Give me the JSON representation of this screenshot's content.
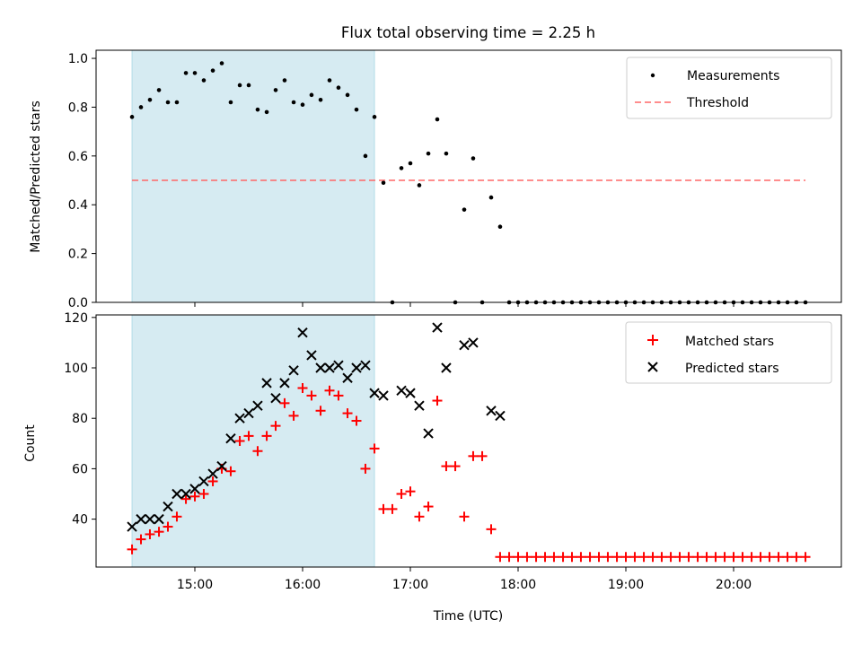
{
  "chart_data": [
    {
      "type": "scatter",
      "title": "Flux total observing time = 2.25 h",
      "ylabel": "Matched/Predicted stars",
      "xlabel": "",
      "xlim": [
        14.0833,
        21.0
      ],
      "ylim": [
        0.0,
        1.0333
      ],
      "yticks": [
        "0.0",
        "0.2",
        "0.4",
        "0.6",
        "0.8",
        "1.0"
      ],
      "ytick_values": [
        0.0,
        0.2,
        0.4,
        0.6,
        0.8,
        1.0
      ],
      "xtick_values": [
        15,
        16,
        17,
        18,
        19,
        20
      ],
      "grid": false,
      "legend_position": "upper right",
      "observing_window": [
        14.417,
        16.667
      ],
      "threshold_label": "Threshold",
      "threshold": 0.5,
      "threshold_x": [
        14.417,
        20.667
      ],
      "series": [
        {
          "name": "Measurements",
          "color": "#000000",
          "marker": "dot",
          "x": [
            14.417,
            14.5,
            14.583,
            14.667,
            14.75,
            14.833,
            14.917,
            15.0,
            15.083,
            15.167,
            15.25,
            15.333,
            15.417,
            15.5,
            15.583,
            15.667,
            15.75,
            15.833,
            15.917,
            16.0,
            16.083,
            16.167,
            16.25,
            16.333,
            16.417,
            16.5,
            16.583,
            16.667,
            16.75,
            16.833,
            16.917,
            17.0,
            17.083,
            17.167,
            17.25,
            17.333,
            17.417,
            17.5,
            17.583,
            17.667,
            17.75,
            17.833,
            17.917,
            18.0,
            18.083,
            18.167,
            18.25,
            18.333,
            18.417,
            18.5,
            18.583,
            18.667,
            18.75,
            18.833,
            18.917,
            19.0,
            19.083,
            19.167,
            19.25,
            19.333,
            19.417,
            19.5,
            19.583,
            19.667,
            19.75,
            19.833,
            19.917,
            20.0,
            20.083,
            20.167,
            20.25,
            20.333,
            20.417,
            20.5,
            20.583,
            20.667
          ],
          "y": [
            0.76,
            0.8,
            0.83,
            0.87,
            0.82,
            0.82,
            0.94,
            0.94,
            0.91,
            0.95,
            0.98,
            0.82,
            0.89,
            0.89,
            0.79,
            0.78,
            0.87,
            0.91,
            0.82,
            0.81,
            0.85,
            0.83,
            0.91,
            0.88,
            0.85,
            0.79,
            0.6,
            0.76,
            0.49,
            0.0,
            0.55,
            0.57,
            0.48,
            0.61,
            0.75,
            0.61,
            0.0,
            0.38,
            0.59,
            0.0,
            0.43,
            0.31,
            0.0,
            0.0,
            0.0,
            0.0,
            0.0,
            0.0,
            0.0,
            0.0,
            0.0,
            0.0,
            0.0,
            0.0,
            0.0,
            0.0,
            0.0,
            0.0,
            0.0,
            0.0,
            0.0,
            0.0,
            0.0,
            0.0,
            0.0,
            0.0,
            0.0,
            0.0,
            0.0,
            0.0,
            0.0,
            0.0,
            0.0,
            0.0,
            0.0,
            0.0
          ]
        }
      ]
    },
    {
      "type": "scatter",
      "title": "",
      "ylabel": "Count",
      "xlabel": "Time (UTC)",
      "xlim": [
        14.0833,
        21.0
      ],
      "ylim": [
        21.0,
        121.0
      ],
      "yticks": [
        "40",
        "60",
        "80",
        "100",
        "120"
      ],
      "ytick_values": [
        40,
        60,
        80,
        100,
        120
      ],
      "xticks": [
        "15:00",
        "16:00",
        "17:00",
        "18:00",
        "19:00",
        "20:00"
      ],
      "xtick_values": [
        15,
        16,
        17,
        18,
        19,
        20
      ],
      "grid": false,
      "legend_position": "upper right",
      "observing_window": [
        14.417,
        16.667
      ],
      "series": [
        {
          "name": "Matched stars",
          "color": "#ff0000",
          "marker": "plus",
          "x": [
            14.417,
            14.5,
            14.583,
            14.667,
            14.75,
            14.833,
            14.917,
            15.0,
            15.083,
            15.167,
            15.25,
            15.333,
            15.417,
            15.5,
            15.583,
            15.667,
            15.75,
            15.833,
            15.917,
            16.0,
            16.083,
            16.167,
            16.25,
            16.333,
            16.417,
            16.5,
            16.583,
            16.667,
            16.75,
            16.833,
            16.917,
            17.0,
            17.083,
            17.167,
            17.25,
            17.333,
            17.417,
            17.5,
            17.583,
            17.667,
            17.75,
            17.833,
            17.917,
            18.0,
            18.083,
            18.167,
            18.25,
            18.333,
            18.417,
            18.5,
            18.583,
            18.667,
            18.75,
            18.833,
            18.917,
            19.0,
            19.083,
            19.167,
            19.25,
            19.333,
            19.417,
            19.5,
            19.583,
            19.667,
            19.75,
            19.833,
            19.917,
            20.0,
            20.083,
            20.167,
            20.25,
            20.333,
            20.417,
            20.5,
            20.583,
            20.667
          ],
          "y": [
            28,
            32,
            34,
            35,
            37,
            41,
            48,
            49,
            50,
            55,
            60,
            59,
            71,
            73,
            67,
            73,
            77,
            86,
            81,
            92,
            89,
            83,
            91,
            89,
            82,
            79,
            60,
            68,
            44,
            44,
            50,
            51,
            41,
            45,
            87,
            61,
            61,
            41,
            65,
            65,
            36,
            25,
            25,
            25,
            25,
            25,
            25,
            25,
            25,
            25,
            25,
            25,
            25,
            25,
            25,
            25,
            25,
            25,
            25,
            25,
            25,
            25,
            25,
            25,
            25,
            25,
            25,
            25,
            25,
            25,
            25,
            25,
            25,
            25,
            25,
            25
          ]
        },
        {
          "name": "Predicted stars",
          "color": "#000000",
          "marker": "x",
          "x": [
            14.417,
            14.5,
            14.583,
            14.667,
            14.75,
            14.833,
            14.917,
            15.0,
            15.083,
            15.167,
            15.25,
            15.333,
            15.417,
            15.5,
            15.583,
            15.667,
            15.75,
            15.833,
            15.917,
            16.0,
            16.083,
            16.167,
            16.25,
            16.333,
            16.417,
            16.5,
            16.583,
            16.667,
            16.75,
            16.917,
            17.0,
            17.083,
            17.167,
            17.25,
            17.333,
            17.5,
            17.583,
            17.75,
            17.833
          ],
          "y": [
            37,
            40,
            40,
            40,
            45,
            50,
            50,
            52,
            55,
            58,
            61,
            72,
            80,
            82,
            85,
            94,
            88,
            94,
            99,
            114,
            105,
            100,
            100,
            101,
            96,
            100,
            101,
            90,
            89,
            91,
            90,
            85,
            74,
            116,
            100,
            109,
            110,
            83,
            81
          ]
        }
      ]
    }
  ]
}
